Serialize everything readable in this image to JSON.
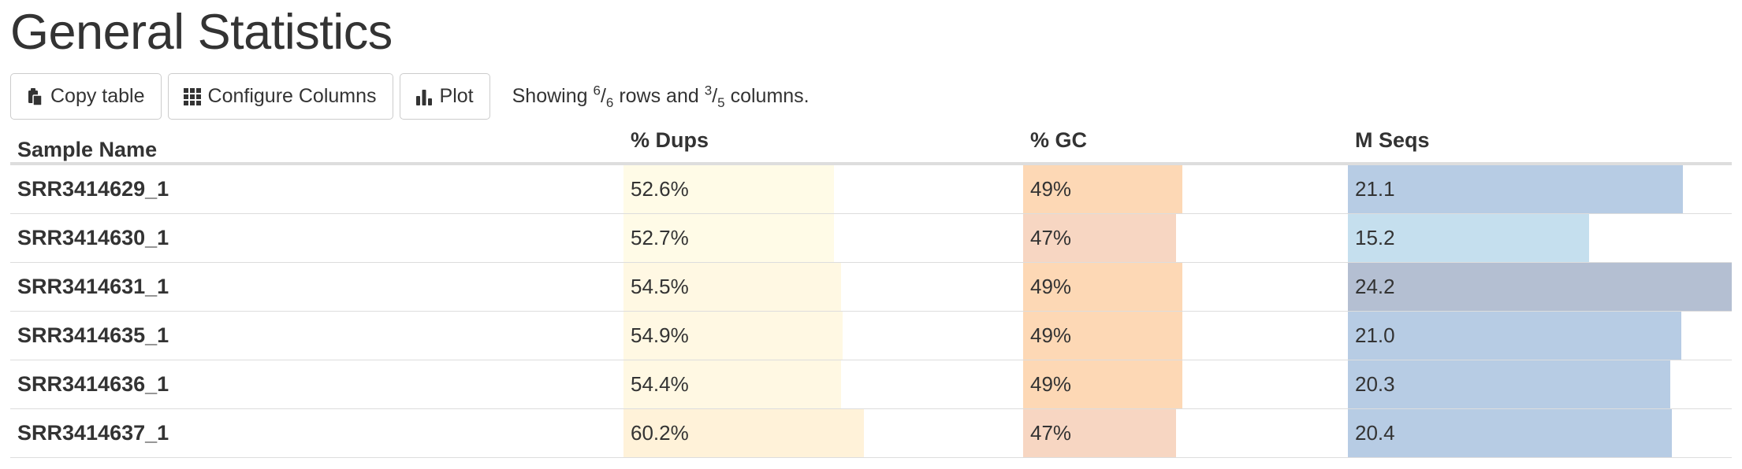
{
  "header": {
    "title": "General Statistics"
  },
  "toolbar": {
    "copy_label": "Copy table",
    "configure_label": "Configure Columns",
    "plot_label": "Plot",
    "showing_prefix": "Showing",
    "rows_shown": "6",
    "rows_total": "6",
    "rows_word": "rows and",
    "cols_shown": "3",
    "cols_total": "5",
    "cols_word": "columns.",
    "icons": [
      "clipboard-icon",
      "grid-icon",
      "bar-chart-icon"
    ]
  },
  "table": {
    "columns": [
      {
        "key": "name",
        "label": "Sample Name"
      },
      {
        "key": "dups",
        "label": "% Dups"
      },
      {
        "key": "gc",
        "label": "% GC"
      },
      {
        "key": "seqs",
        "label": "M Seqs"
      }
    ],
    "rows": [
      {
        "name": "SRR3414629_1",
        "dups": "52.6%",
        "dups_v": 52.6,
        "gc": "49%",
        "gc_v": 49,
        "seqs": "21.1",
        "seqs_v": 21.1
      },
      {
        "name": "SRR3414630_1",
        "dups": "52.7%",
        "dups_v": 52.7,
        "gc": "47%",
        "gc_v": 47,
        "seqs": "15.2",
        "seqs_v": 15.2
      },
      {
        "name": "SRR3414631_1",
        "dups": "54.5%",
        "dups_v": 54.5,
        "gc": "49%",
        "gc_v": 49,
        "seqs": "24.2",
        "seqs_v": 24.2
      },
      {
        "name": "SRR3414635_1",
        "dups": "54.9%",
        "dups_v": 54.9,
        "gc": "49%",
        "gc_v": 49,
        "seqs": "21.0",
        "seqs_v": 21.0
      },
      {
        "name": "SRR3414636_1",
        "dups": "54.4%",
        "dups_v": 54.4,
        "gc": "49%",
        "gc_v": 49,
        "seqs": "20.3",
        "seqs_v": 20.3
      },
      {
        "name": "SRR3414637_1",
        "dups": "60.2%",
        "dups_v": 60.2,
        "gc": "47%",
        "gc_v": 47,
        "seqs": "20.4",
        "seqs_v": 20.4
      }
    ],
    "scales": {
      "dups_max": 100,
      "gc_max": 100,
      "seqs_max": 24.2
    },
    "bar_colors": {
      "dups": [
        "#fffbe7",
        "#fffbe7",
        "#fff8e3",
        "#fff8e3",
        "#fff8e3",
        "#fff2d9"
      ],
      "gc": [
        "#fdd8b5",
        "#f7d6c2",
        "#fdd8b5",
        "#fdd8b5",
        "#fdd8b5",
        "#f7d6c2"
      ],
      "seqs": [
        "#b7cce4",
        "#c5dfee",
        "#b4bfd2",
        "#b7cce4",
        "#b7cce4",
        "#b7cce4"
      ]
    }
  }
}
